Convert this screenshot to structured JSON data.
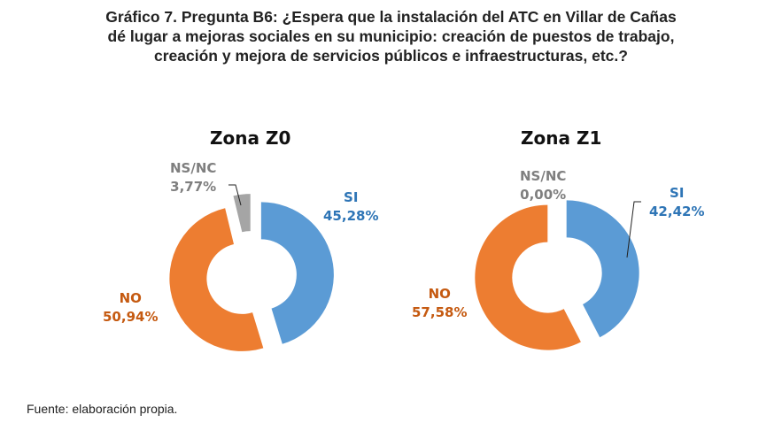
{
  "title_lines": [
    "Gráfico 7. Pregunta B6: ¿Espera que la instalación del ATC en Villar de Cañas",
    "dé lugar a mejoras sociales en su municipio: creación de puestos de trabajo,",
    "creación y mejora de servicios públicos e infraestructuras, etc.?"
  ],
  "source": "Fuente: elaboración propia.",
  "chart_data": [
    {
      "type": "pie",
      "style": "exploded donut",
      "title": "Zona Z0",
      "categories": [
        "SI",
        "NO",
        "NS/NC"
      ],
      "values": [
        45.28,
        50.94,
        3.77
      ],
      "value_labels": [
        "45,28%",
        "50,94%",
        "3,77%"
      ],
      "colors": [
        "#5B9BD5",
        "#ED7D31",
        "#A5A5A5"
      ]
    },
    {
      "type": "pie",
      "style": "exploded donut",
      "title": "Zona Z1",
      "categories": [
        "SI",
        "NO",
        "NS/NC"
      ],
      "values": [
        42.42,
        57.58,
        0.0
      ],
      "value_labels": [
        "42,42%",
        "57,58%",
        "0,00%"
      ],
      "colors": [
        "#5B9BD5",
        "#ED7D31",
        "#A5A5A5"
      ]
    }
  ],
  "label_colors": [
    "#2E75B6",
    "#C55A11",
    "#7F7F7F"
  ]
}
